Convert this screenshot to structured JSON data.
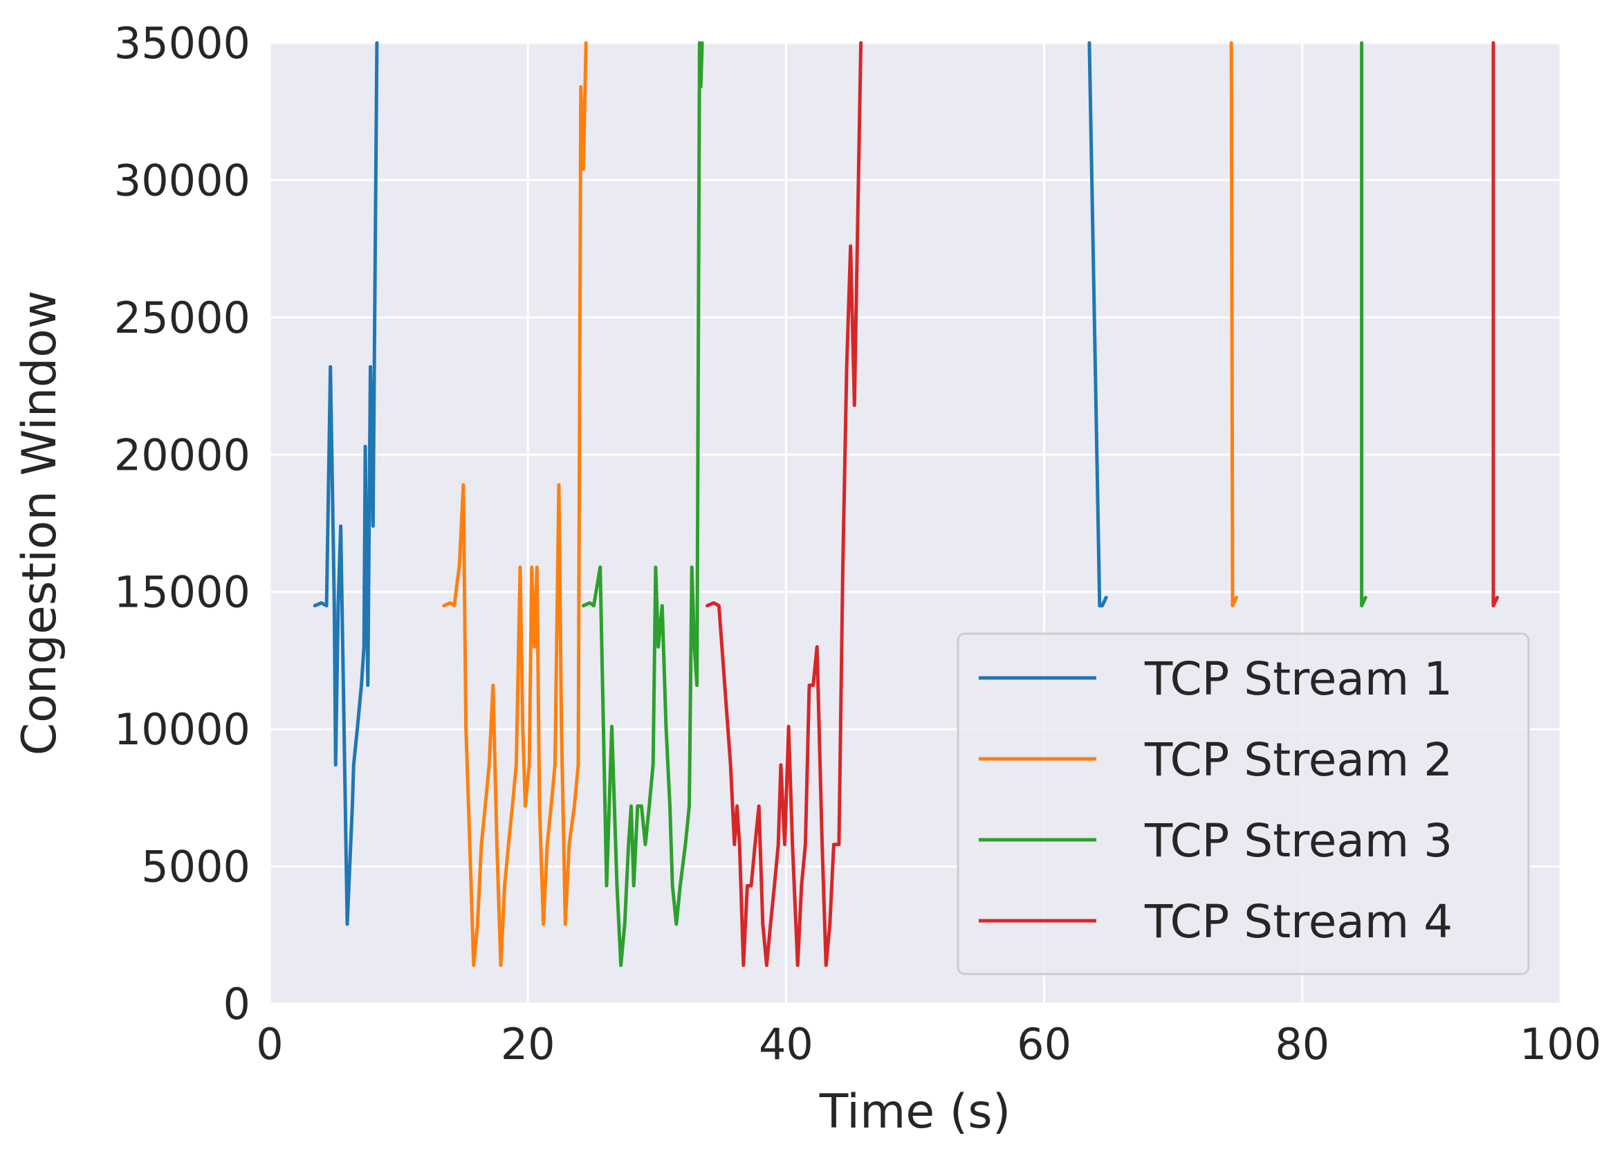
{
  "chart_data": {
    "type": "line",
    "title": "",
    "xlabel": "Time (s)",
    "ylabel": "Congestion Window",
    "xlim": [
      0,
      100
    ],
    "ylim": [
      0,
      35000
    ],
    "xticks": [
      0,
      20,
      40,
      60,
      80,
      100
    ],
    "yticks": [
      0,
      5000,
      10000,
      15000,
      20000,
      25000,
      30000,
      35000
    ],
    "grid": true,
    "legend_position": "lower-right",
    "series": [
      {
        "name": "TCP Stream 1",
        "color": "#1f77b4",
        "points": [
          [
            3.5,
            14500
          ],
          [
            4.0,
            14600
          ],
          [
            4.4,
            14500
          ],
          [
            4.7,
            23200
          ],
          [
            5.0,
            14500
          ],
          [
            5.1,
            8700
          ],
          [
            5.3,
            14500
          ],
          [
            5.5,
            17400
          ],
          [
            5.7,
            11600
          ],
          [
            6.0,
            2900
          ],
          [
            6.4,
            7200
          ],
          [
            6.5,
            8700
          ],
          [
            6.8,
            10100
          ],
          [
            7.1,
            11600
          ],
          [
            7.3,
            13000
          ],
          [
            7.4,
            20300
          ],
          [
            7.6,
            11600
          ],
          [
            7.8,
            23200
          ],
          [
            8.0,
            17400
          ],
          [
            8.3,
            35000
          ],
          [
            8.3,
            null
          ],
          [
            63.5,
            35000
          ],
          [
            64.3,
            14500
          ],
          [
            64.5,
            14500
          ],
          [
            64.8,
            14800
          ]
        ]
      },
      {
        "name": "TCP Stream 2",
        "color": "#ff7f0e",
        "points": [
          [
            13.5,
            14500
          ],
          [
            14.0,
            14600
          ],
          [
            14.3,
            14500
          ],
          [
            14.7,
            16000
          ],
          [
            15.0,
            18900
          ],
          [
            15.2,
            10100
          ],
          [
            15.5,
            5800
          ],
          [
            15.8,
            1400
          ],
          [
            16.1,
            2900
          ],
          [
            16.4,
            5800
          ],
          [
            16.7,
            7200
          ],
          [
            17.0,
            8700
          ],
          [
            17.3,
            11600
          ],
          [
            17.6,
            5800
          ],
          [
            17.9,
            1400
          ],
          [
            18.2,
            4300
          ],
          [
            18.5,
            5800
          ],
          [
            18.8,
            7200
          ],
          [
            19.1,
            8700
          ],
          [
            19.4,
            15900
          ],
          [
            19.6,
            10100
          ],
          [
            19.8,
            7200
          ],
          [
            20.1,
            8700
          ],
          [
            20.3,
            15900
          ],
          [
            20.5,
            13000
          ],
          [
            20.7,
            15900
          ],
          [
            20.9,
            7200
          ],
          [
            21.2,
            2900
          ],
          [
            21.5,
            5800
          ],
          [
            21.8,
            7200
          ],
          [
            22.1,
            8700
          ],
          [
            22.4,
            18900
          ],
          [
            22.6,
            10100
          ],
          [
            22.9,
            2900
          ],
          [
            23.2,
            5800
          ],
          [
            23.6,
            7200
          ],
          [
            23.9,
            8700
          ],
          [
            24.1,
            33400
          ],
          [
            24.3,
            30400
          ],
          [
            24.5,
            35000
          ],
          [
            24.5,
            null
          ],
          [
            74.5,
            35000
          ],
          [
            74.6,
            14500
          ],
          [
            74.9,
            14800
          ]
        ]
      },
      {
        "name": "TCP Stream 3",
        "color": "#2ca02c",
        "points": [
          [
            24.3,
            14500
          ],
          [
            24.8,
            14600
          ],
          [
            25.1,
            14500
          ],
          [
            25.6,
            15900
          ],
          [
            26.1,
            4300
          ],
          [
            26.5,
            10100
          ],
          [
            26.9,
            4300
          ],
          [
            27.2,
            1400
          ],
          [
            27.5,
            2900
          ],
          [
            27.8,
            5800
          ],
          [
            28.0,
            7200
          ],
          [
            28.2,
            4300
          ],
          [
            28.5,
            7200
          ],
          [
            28.8,
            7200
          ],
          [
            29.1,
            5800
          ],
          [
            29.4,
            7200
          ],
          [
            29.7,
            8700
          ],
          [
            29.9,
            15900
          ],
          [
            30.1,
            13000
          ],
          [
            30.4,
            14500
          ],
          [
            30.7,
            10100
          ],
          [
            31.0,
            7200
          ],
          [
            31.2,
            4300
          ],
          [
            31.5,
            2900
          ],
          [
            31.8,
            4300
          ],
          [
            32.2,
            5800
          ],
          [
            32.5,
            7200
          ],
          [
            32.7,
            15900
          ],
          [
            32.9,
            13000
          ],
          [
            33.1,
            11600
          ],
          [
            33.3,
            35000
          ],
          [
            33.4,
            33400
          ],
          [
            33.5,
            35000
          ],
          [
            33.5,
            null
          ],
          [
            84.6,
            35000
          ],
          [
            84.6,
            14500
          ],
          [
            84.9,
            14800
          ]
        ]
      },
      {
        "name": "TCP Stream 4",
        "color": "#d62728",
        "points": [
          [
            33.9,
            14500
          ],
          [
            34.4,
            14600
          ],
          [
            34.8,
            14500
          ],
          [
            35.7,
            8700
          ],
          [
            36.0,
            5800
          ],
          [
            36.2,
            7200
          ],
          [
            36.4,
            5800
          ],
          [
            36.7,
            1400
          ],
          [
            37.0,
            4300
          ],
          [
            37.3,
            4300
          ],
          [
            37.6,
            5800
          ],
          [
            37.9,
            7200
          ],
          [
            38.2,
            2900
          ],
          [
            38.5,
            1400
          ],
          [
            38.8,
            2900
          ],
          [
            39.1,
            4300
          ],
          [
            39.4,
            5800
          ],
          [
            39.6,
            8700
          ],
          [
            39.9,
            5800
          ],
          [
            40.2,
            10100
          ],
          [
            40.5,
            5800
          ],
          [
            40.9,
            1400
          ],
          [
            41.2,
            4300
          ],
          [
            41.5,
            5800
          ],
          [
            41.8,
            11600
          ],
          [
            42.1,
            11600
          ],
          [
            42.4,
            13000
          ],
          [
            42.8,
            5800
          ],
          [
            43.1,
            1400
          ],
          [
            43.4,
            2900
          ],
          [
            43.7,
            5800
          ],
          [
            44.1,
            5800
          ],
          [
            44.4,
            15900
          ],
          [
            44.7,
            23200
          ],
          [
            45.0,
            27600
          ],
          [
            45.3,
            21800
          ],
          [
            45.8,
            35000
          ],
          [
            45.8,
            null
          ],
          [
            94.8,
            35000
          ],
          [
            94.8,
            14500
          ],
          [
            95.1,
            14800
          ]
        ]
      }
    ]
  }
}
